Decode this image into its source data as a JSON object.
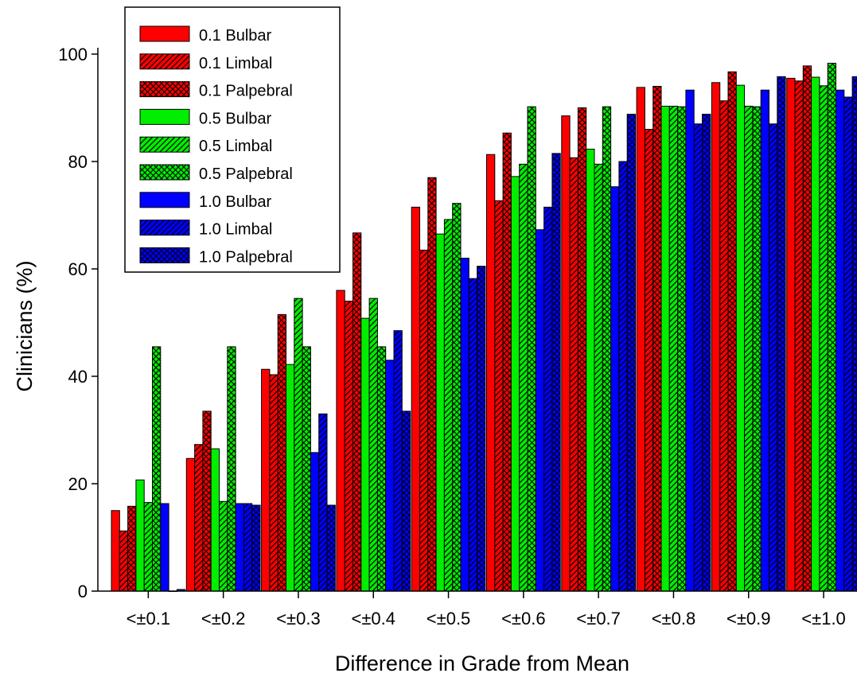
{
  "chart_data": {
    "type": "bar",
    "title": "",
    "xlabel": "Difference in Grade from Mean",
    "ylabel": "Clinicians (%)",
    "ylim": [
      0,
      100
    ],
    "yticks": [
      0,
      20,
      40,
      60,
      80,
      100
    ],
    "grid": false,
    "legend_position": "top-left",
    "categories": [
      "<±0.1",
      "<±0.2",
      "<±0.3",
      "<±0.4",
      "<±0.5",
      "<±0.6",
      "<±0.7",
      "<±0.8",
      "<±0.9",
      "<±1.0"
    ],
    "series": [
      {
        "name": "0.1 Bulbar",
        "color": "#ff0000",
        "pattern": "solid",
        "values": [
          15,
          24.7,
          41.3,
          56,
          71.5,
          81.3,
          88.5,
          93.8,
          94.7,
          95.5
        ]
      },
      {
        "name": "0.1 Limbal",
        "color": "#ff0000",
        "pattern": "diag",
        "values": [
          11.2,
          27.3,
          40.3,
          54,
          63.5,
          72.7,
          80.7,
          86,
          91.3,
          95
        ]
      },
      {
        "name": "0.1 Palpebral",
        "color": "#ff0000",
        "pattern": "cross",
        "values": [
          15.8,
          33.5,
          51.5,
          66.7,
          77,
          85.3,
          90,
          94,
          96.7,
          97.8
        ]
      },
      {
        "name": "0.5 Bulbar",
        "color": "#00ee00",
        "pattern": "solid",
        "values": [
          20.7,
          26.5,
          42.2,
          50.8,
          66.5,
          77.2,
          82.3,
          90.3,
          94.2,
          95.7
        ]
      },
      {
        "name": "0.5 Limbal",
        "color": "#00ee00",
        "pattern": "diag",
        "values": [
          16.5,
          16.7,
          54.5,
          54.5,
          69.2,
          79.5,
          79.5,
          90.3,
          90.3,
          94.1
        ]
      },
      {
        "name": "0.5 Palpebral",
        "color": "#00ee00",
        "pattern": "cross",
        "values": [
          45.5,
          45.5,
          45.5,
          45.5,
          72.2,
          90.2,
          90.2,
          90.2,
          90.2,
          98.3
        ]
      },
      {
        "name": "1.0 Bulbar",
        "color": "#0000ff",
        "pattern": "solid",
        "values": [
          16.3,
          16.3,
          25.8,
          43,
          62,
          67.3,
          75.3,
          93.3,
          93.3,
          93.3
        ]
      },
      {
        "name": "1.0 Limbal",
        "color": "#0000ff",
        "pattern": "diag",
        "values": [
          0,
          16.3,
          33,
          48.5,
          58.2,
          71.5,
          80,
          87,
          87,
          92
        ]
      },
      {
        "name": "1.0 Palpebral",
        "color": "#0000ff",
        "pattern": "cross",
        "values": [
          0.3,
          16,
          16,
          33.5,
          60.5,
          81.5,
          88.8,
          88.8,
          95.8,
          95.8
        ]
      }
    ]
  }
}
